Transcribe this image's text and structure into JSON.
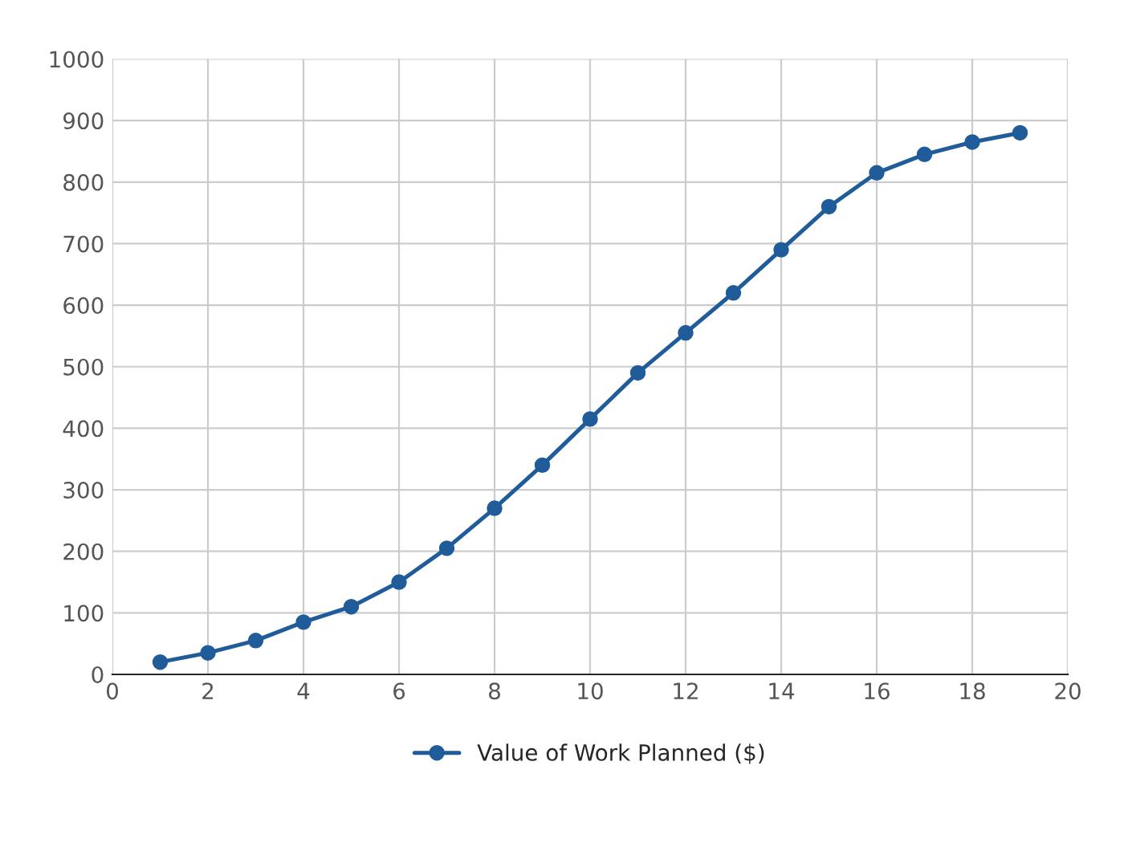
{
  "chart_data": {
    "type": "line",
    "x": [
      1,
      2,
      3,
      4,
      5,
      6,
      7,
      8,
      9,
      10,
      11,
      12,
      13,
      14,
      15,
      16,
      17,
      18,
      19
    ],
    "series": [
      {
        "name": "Value of Work Planned ($)",
        "color": "#1f5c99",
        "values": [
          20,
          35,
          55,
          85,
          110,
          150,
          205,
          270,
          340,
          415,
          490,
          555,
          620,
          690,
          760,
          815,
          845,
          865,
          880
        ]
      }
    ],
    "xlim": [
      0,
      20
    ],
    "xticks": [
      0,
      2,
      4,
      6,
      8,
      10,
      12,
      14,
      16,
      18,
      20
    ],
    "ylim": [
      0,
      1000
    ],
    "yticks": [
      0,
      100,
      200,
      300,
      400,
      500,
      600,
      700,
      800,
      900,
      1000
    ],
    "grid": true,
    "legend": "bottom",
    "marker": "circle",
    "line_style": "solid"
  }
}
